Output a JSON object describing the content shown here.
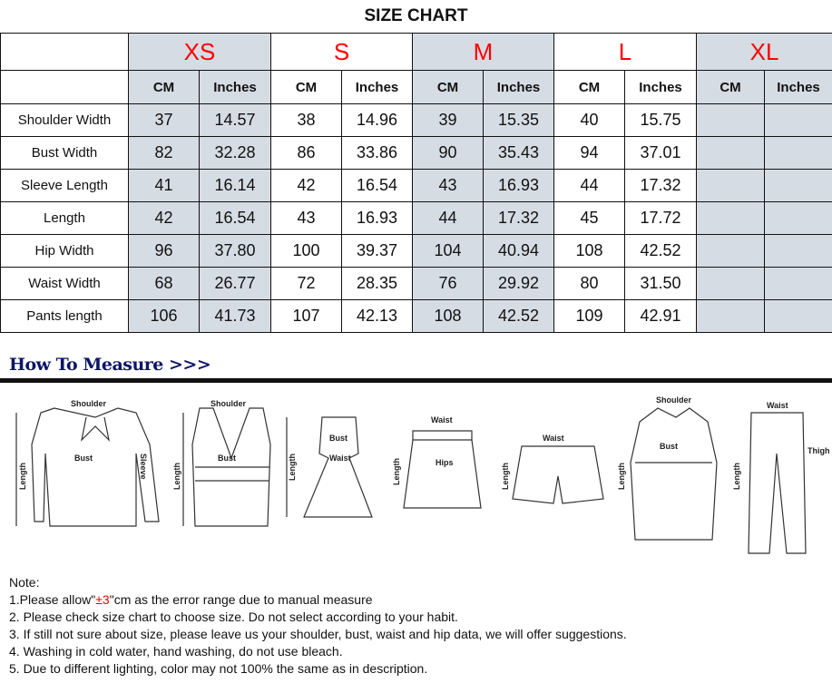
{
  "title": "SIZE CHART",
  "sizes": [
    "XS",
    "S",
    "M",
    "L",
    "XL"
  ],
  "units": [
    "CM",
    "Inches"
  ],
  "rows": [
    {
      "label": "Shoulder Width",
      "values": [
        "37",
        "14.57",
        "38",
        "14.96",
        "39",
        "15.35",
        "40",
        "15.75",
        "",
        ""
      ]
    },
    {
      "label": "Bust Width",
      "values": [
        "82",
        "32.28",
        "86",
        "33.86",
        "90",
        "35.43",
        "94",
        "37.01",
        "",
        ""
      ]
    },
    {
      "label": "Sleeve Length",
      "values": [
        "41",
        "16.14",
        "42",
        "16.54",
        "43",
        "16.93",
        "44",
        "17.32",
        "",
        ""
      ]
    },
    {
      "label": "Length",
      "values": [
        "42",
        "16.54",
        "43",
        "16.93",
        "44",
        "17.32",
        "45",
        "17.72",
        "",
        ""
      ]
    },
    {
      "label": "Hip Width",
      "values": [
        "96",
        "37.80",
        "100",
        "39.37",
        "104",
        "40.94",
        "108",
        "42.52",
        "",
        ""
      ]
    },
    {
      "label": "Waist Width",
      "values": [
        "68",
        "26.77",
        "72",
        "28.35",
        "76",
        "29.92",
        "80",
        "31.50",
        "",
        ""
      ]
    },
    {
      "label": "Pants length",
      "values": [
        "106",
        "41.73",
        "107",
        "42.13",
        "108",
        "42.52",
        "109",
        "42.91",
        "",
        ""
      ]
    }
  ],
  "how_to_measure": "How To Measure >>>",
  "garments": {
    "shoulder": "Shoulder",
    "length": "Length",
    "bust": "Bust",
    "sleeve": "Sleeve",
    "waist": "Waist",
    "hips": "Hips",
    "thigh": "Thigh"
  },
  "notes": {
    "heading": "Note:",
    "line1_pre": "1.Please allow\"",
    "line1_red": "±3",
    "line1_post": "\"cm as the error range due to manual measure",
    "line2": "2. Please check size chart to choose size. Do not select according to your habit.",
    "line3": "3. If still not sure about size, please leave us your shoulder, bust, waist and hip data, we will offer suggestions.",
    "line4": "4. Washing in cold water, hand washing, do not use bleach.",
    "line5": "5. Due to different lighting, color may not 100% the same as in description."
  },
  "colors": {
    "size_label": "#ff0000",
    "shade": "#d6dce4",
    "heading": "#0d1566"
  }
}
